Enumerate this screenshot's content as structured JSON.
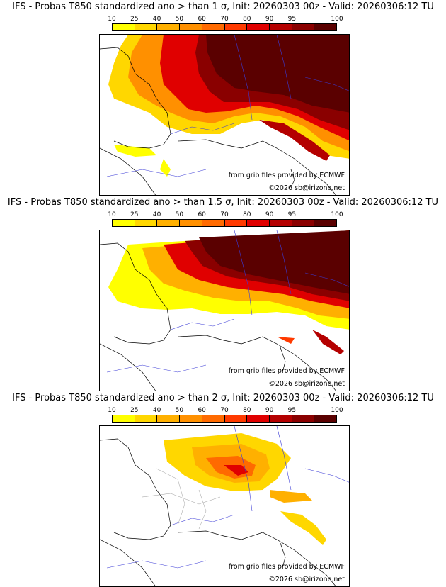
{
  "colorbar": {
    "labels": [
      "10",
      "25",
      "40",
      "50",
      "60",
      "70",
      "80",
      "90",
      "95",
      "100"
    ],
    "colors": [
      "#ffff00",
      "#ffd700",
      "#ffb000",
      "#ff9000",
      "#ff6a00",
      "#ff3a00",
      "#e00000",
      "#b40000",
      "#8a0000",
      "#5a0000"
    ]
  },
  "panels": [
    {
      "title": "IFS - Probas T850  standardized ano > than 1 σ, Init: 20260303 00z - Valid: 20260306:12 TU",
      "credit_source": "from grib files provided by ECMWF",
      "credit_copyright": "©2026 sb@irizone.net"
    },
    {
      "title": "IFS - Probas T850  standardized ano > than 1.5 σ, Init: 20260303 00z - Valid: 20260306:12 TU",
      "credit_source": "from grib files provided by ECMWF",
      "credit_copyright": "©2026 sb@irizone.net"
    },
    {
      "title": "IFS - Probas T850  standardized ano > than 2 σ, Init: 20260303 00z - Valid: 20260306:12 TU",
      "credit_source": "from grib files provided by ECMWF",
      "credit_copyright": "©2026 sb@irizone.net"
    }
  ]
}
